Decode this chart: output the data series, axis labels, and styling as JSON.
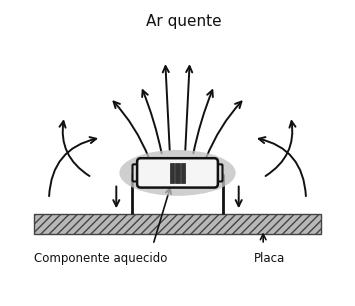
{
  "title": "Ar quente",
  "label_component": "Componente aquecido",
  "label_plate": "Placa",
  "bg_color": "#ffffff",
  "arrow_color": "#111111",
  "figsize": [
    3.55,
    3.06
  ],
  "dpi": 100
}
